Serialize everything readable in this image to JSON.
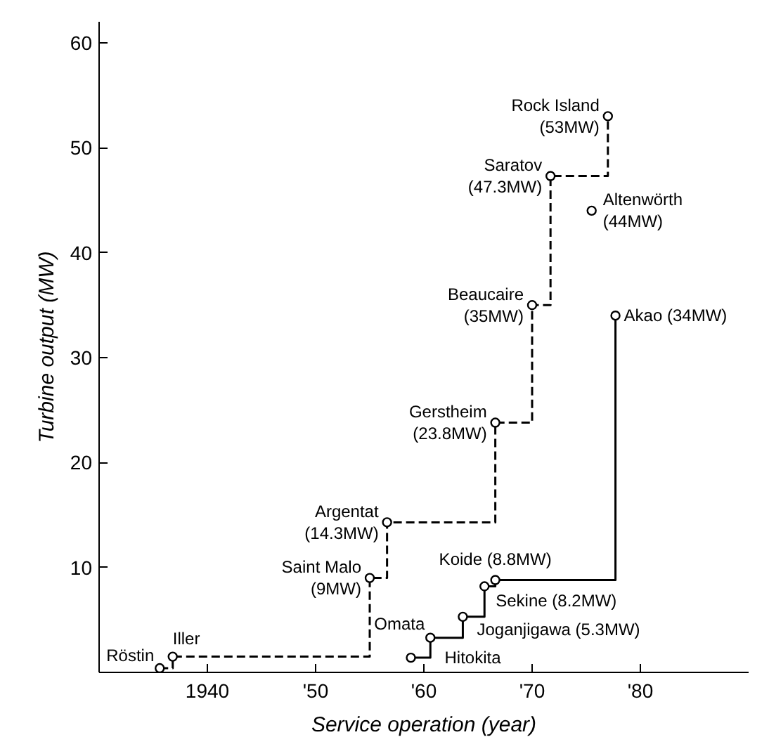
{
  "chart_data": {
    "type": "step",
    "xlabel": "Service operation (year)",
    "ylabel": "Turbine output (MW)",
    "xlim": [
      1930,
      1990
    ],
    "ylim": [
      0,
      62
    ],
    "xticks": [
      {
        "value": 1940,
        "label": "1940"
      },
      {
        "value": 1950,
        "label": "'50"
      },
      {
        "value": 1960,
        "label": "'60"
      },
      {
        "value": 1970,
        "label": "'70"
      },
      {
        "value": 1980,
        "label": "'80"
      }
    ],
    "yticks": [
      10,
      20,
      30,
      40,
      50,
      60
    ],
    "grid": false,
    "marker": "circle",
    "series": [
      {
        "color": "#000000",
        "line_style": "dashed",
        "x": [
          1935.6,
          1936.8,
          1955,
          1956.6,
          1966.6,
          1970,
          1971.7,
          1977
        ],
        "values": [
          0.4,
          1.5,
          9,
          14.3,
          23.8,
          35,
          47.3,
          53
        ]
      },
      {
        "color": "#000000",
        "line_style": "solid",
        "x": [
          1958.8,
          1960.6,
          1963.6,
          1965.6,
          1966.6,
          1977.7
        ],
        "values": [
          1.4,
          3.3,
          5.3,
          8.2,
          8.8,
          34
        ]
      },
      {
        "type": "scatter",
        "color": "#000000",
        "x": [
          1975.5
        ],
        "values": [
          44
        ]
      }
    ],
    "annotations": [
      {
        "text": "Röstin",
        "x": 1935.6,
        "y": 0.4
      },
      {
        "text": "Iller",
        "x": 1936.8,
        "y": 1.5
      },
      {
        "text": "Saint Malo\n(9MW)",
        "x": 1955,
        "y": 9
      },
      {
        "text": "Argentat\n(14.3MW)",
        "x": 1956.6,
        "y": 14.3
      },
      {
        "text": "Gerstheim\n(23.8MW)",
        "x": 1966.6,
        "y": 23.8
      },
      {
        "text": "Beaucaire\n(35MW)",
        "x": 1970,
        "y": 35
      },
      {
        "text": "Saratov\n(47.3MW)",
        "x": 1971.7,
        "y": 47.3
      },
      {
        "text": "Rock Island\n(53MW)",
        "x": 1977,
        "y": 53
      },
      {
        "text": "Altenwörth\n(44MW)",
        "x": 1975.5,
        "y": 44
      },
      {
        "text": "Akao (34MW)",
        "x": 1977.7,
        "y": 34
      },
      {
        "text": "Koide (8.8MW)",
        "x": 1966.6,
        "y": 8.8
      },
      {
        "text": "Sekine (8.2MW)",
        "x": 1965.6,
        "y": 8.2
      },
      {
        "text": "Joganjigawa (5.3MW)",
        "x": 1963.6,
        "y": 5.3
      },
      {
        "text": "Omata",
        "x": 1960.6,
        "y": 3.3
      },
      {
        "text": "Hitokita",
        "x": 1958.8,
        "y": 1.4
      }
    ]
  }
}
